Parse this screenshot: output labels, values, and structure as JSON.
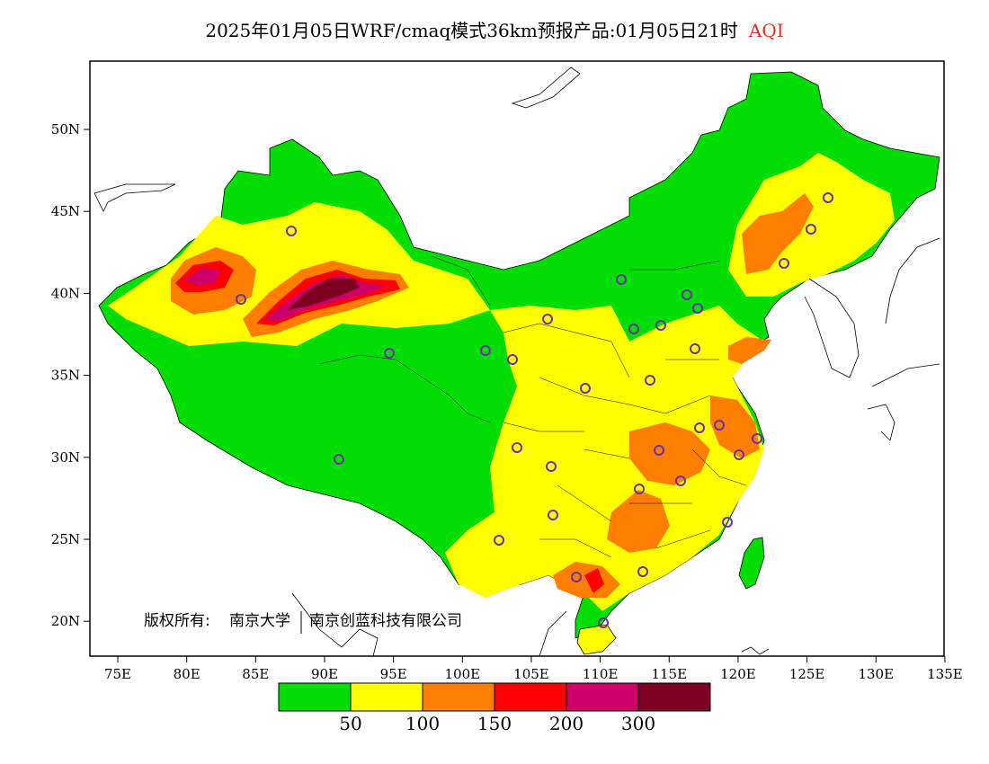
{
  "title": {
    "main": "2025年01月05日WRF/cmaq模式36km预报产品:01月05日21时",
    "variable": "AQI",
    "variable_color": "#e03020"
  },
  "axes": {
    "x_ticks": [
      "75E",
      "80E",
      "85E",
      "90E",
      "95E",
      "100E",
      "105E",
      "110E",
      "115E",
      "120E",
      "125E",
      "130E",
      "135E"
    ],
    "y_ticks": [
      "50N",
      "45N",
      "40N",
      "35N",
      "30N",
      "25N",
      "20N"
    ]
  },
  "copyright": {
    "prefix": "版权所有:",
    "org1": "南京大学",
    "org2": "南京创蓝科技有限公司"
  },
  "legend": {
    "colors": [
      "#00dd00",
      "#ffff00",
      "#ff7e00",
      "#ff0000",
      "#cc0066",
      "#7e0023"
    ],
    "labels": [
      "50",
      "100",
      "150",
      "200",
      "300"
    ]
  },
  "map": {
    "lon_range": [
      73,
      135
    ],
    "lat_range": [
      18,
      54
    ],
    "colors": {
      "land_background": "#ffffff",
      "good": "#00dd00",
      "moderate": "#ffff00",
      "light": "#ff7e00",
      "medium": "#ff0000",
      "heavy": "#cc0066",
      "severe": "#7e0023",
      "station_marker": "#7030a0"
    }
  }
}
